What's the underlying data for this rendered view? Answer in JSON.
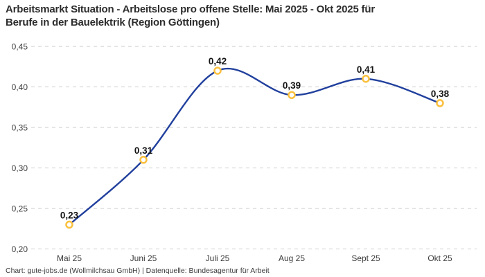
{
  "header": {
    "title_line1": "Arbeitsmarkt Situation - Arbeitslose pro offene Stelle: Mai 2025 - Okt 2025 für",
    "title_line2": "Berufe in der Bauelektrik (Region Göttingen)"
  },
  "footer": {
    "text": "Chart: gute-jobs.de (Wollmilchsau GmbH) | Datenquelle: Bundesagentur für Arbeit"
  },
  "chart_data": {
    "type": "line",
    "title": "Arbeitsmarkt Situation - Arbeitslose pro offene Stelle: Mai 2025 - Okt 2025 für Berufe in der Bauelektrik (Region Göttingen)",
    "categories": [
      "Mai 25",
      "Juni 25",
      "Juli 25",
      "Aug 25",
      "Sept 25",
      "Okt 25"
    ],
    "values": [
      0.23,
      0.31,
      0.42,
      0.39,
      0.41,
      0.38
    ],
    "point_labels": [
      "0,23",
      "0,31",
      "0,42",
      "0,39",
      "0,41",
      "0,38"
    ],
    "xlabel": "",
    "ylabel": "",
    "ylim": [
      0.2,
      0.45
    ],
    "yticks": [
      0.2,
      0.25,
      0.3,
      0.35,
      0.4,
      0.45
    ],
    "ytick_labels": [
      "0,20",
      "0,25",
      "0,30",
      "0,35",
      "0,40",
      "0,45"
    ],
    "grid": "horizontal-dashed",
    "legend": "none",
    "line_style": "smooth",
    "colors": {
      "line": "#21409d",
      "marker_stroke": "#fac03d",
      "marker_fill": "#ffffff",
      "grid": "#cbcbcb",
      "axis_text": "#3c3c3c",
      "point_label_text": "#141414"
    }
  }
}
